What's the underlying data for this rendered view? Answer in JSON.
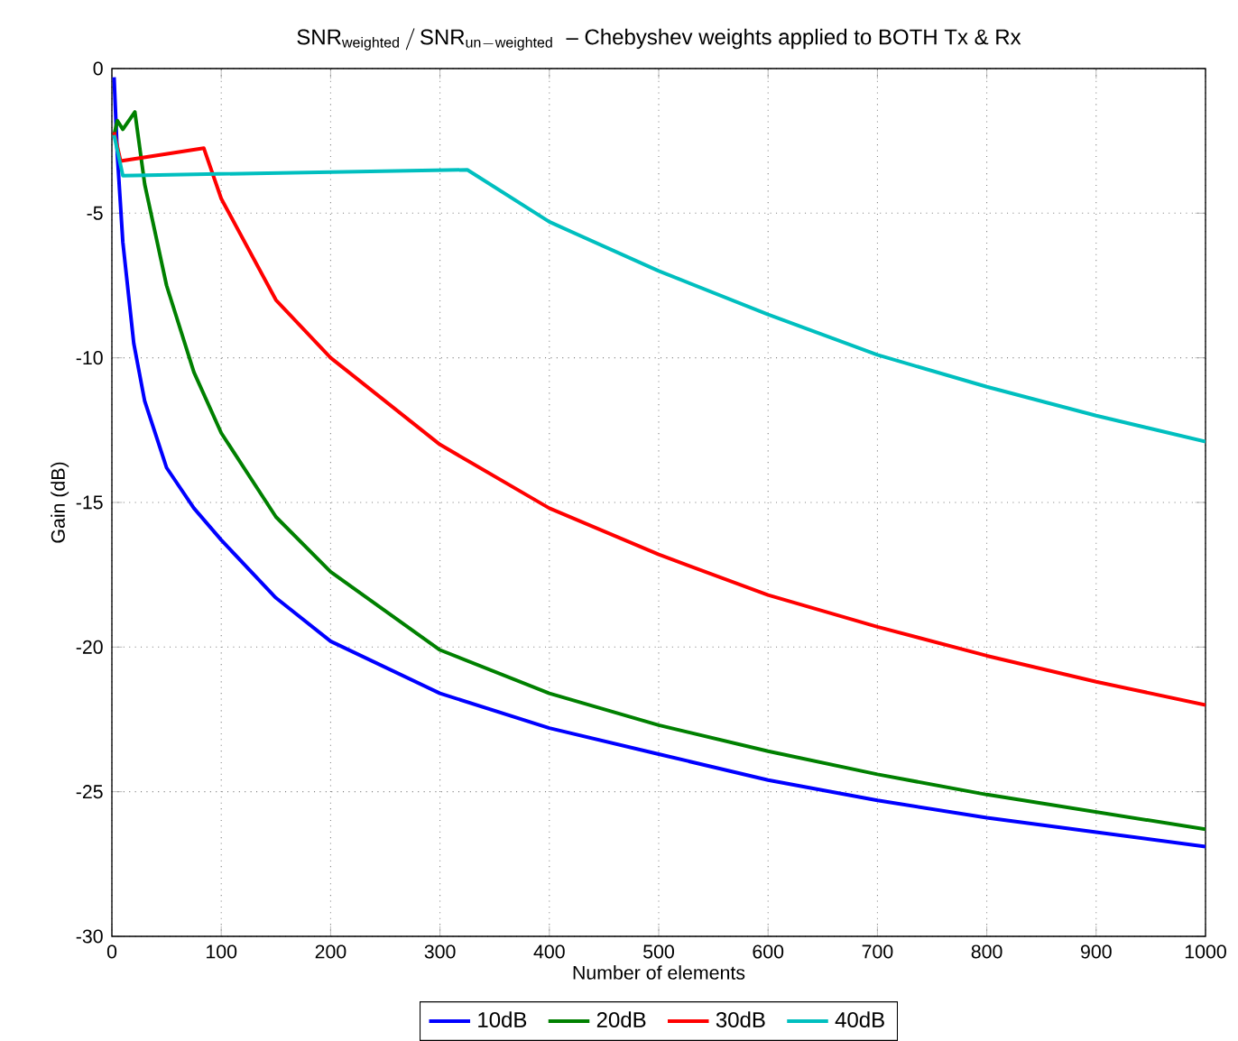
{
  "chart_data": {
    "type": "line",
    "title": "\\mathrm{SNR}_{\\mathrm{weighted}}\\,/\\,\\mathrm{SNR}_{\\mathrm{un-weighted}}\\ \\ \\textrm{– Chebyshev weights applied to BOTH Tx \\& Rx}",
    "xlabel": "Number of elements",
    "ylabel": "Gain (dB)",
    "xlim": [
      0,
      1000
    ],
    "ylim": [
      -30,
      0
    ],
    "xticks": [
      0,
      100,
      200,
      300,
      400,
      500,
      600,
      700,
      800,
      900,
      1000
    ],
    "yticks": [
      -30,
      -25,
      -20,
      -15,
      -10,
      -5,
      0
    ],
    "grid": true,
    "legend": "bottom",
    "series": [
      {
        "name": "10dB",
        "color": "#0000ff",
        "x": [
          2,
          5,
          10,
          20,
          30,
          50,
          75,
          100,
          150,
          200,
          300,
          400,
          500,
          600,
          700,
          800,
          900,
          1000
        ],
        "values": [
          -0.3,
          -3,
          -6,
          -9.5,
          -11.5,
          -13.8,
          -15.2,
          -16.3,
          -18.3,
          -19.8,
          -21.6,
          -22.8,
          -23.7,
          -24.6,
          -25.3,
          -25.9,
          -26.4,
          -26.9
        ]
      },
      {
        "name": "20dB",
        "color": "#008000",
        "x": [
          2,
          5,
          10,
          21,
          30,
          50,
          75,
          100,
          150,
          200,
          300,
          400,
          500,
          600,
          700,
          800,
          900,
          1000
        ],
        "values": [
          -2.3,
          -1.8,
          -2.1,
          -1.5,
          -4,
          -7.5,
          -10.5,
          -12.6,
          -15.5,
          -17.4,
          -20.1,
          -21.6,
          -22.7,
          -23.6,
          -24.4,
          -25.1,
          -25.7,
          -26.3
        ]
      },
      {
        "name": "30dB",
        "color": "#ff0000",
        "x": [
          2,
          8,
          84,
          100,
          150,
          200,
          300,
          400,
          500,
          600,
          700,
          800,
          900,
          1000
        ],
        "values": [
          -2.2,
          -3.2,
          -2.75,
          -4.5,
          -8,
          -10,
          -13,
          -15.2,
          -16.8,
          -18.2,
          -19.3,
          -20.3,
          -21.2,
          -22
        ]
      },
      {
        "name": "40dB",
        "color": "#00bfbf",
        "x": [
          2,
          10,
          325,
          400,
          500,
          600,
          700,
          800,
          900,
          1000
        ],
        "values": [
          -2.3,
          -3.7,
          -3.5,
          -5.3,
          -7,
          -8.5,
          -9.9,
          -11,
          -12,
          -12.9
        ]
      }
    ]
  }
}
